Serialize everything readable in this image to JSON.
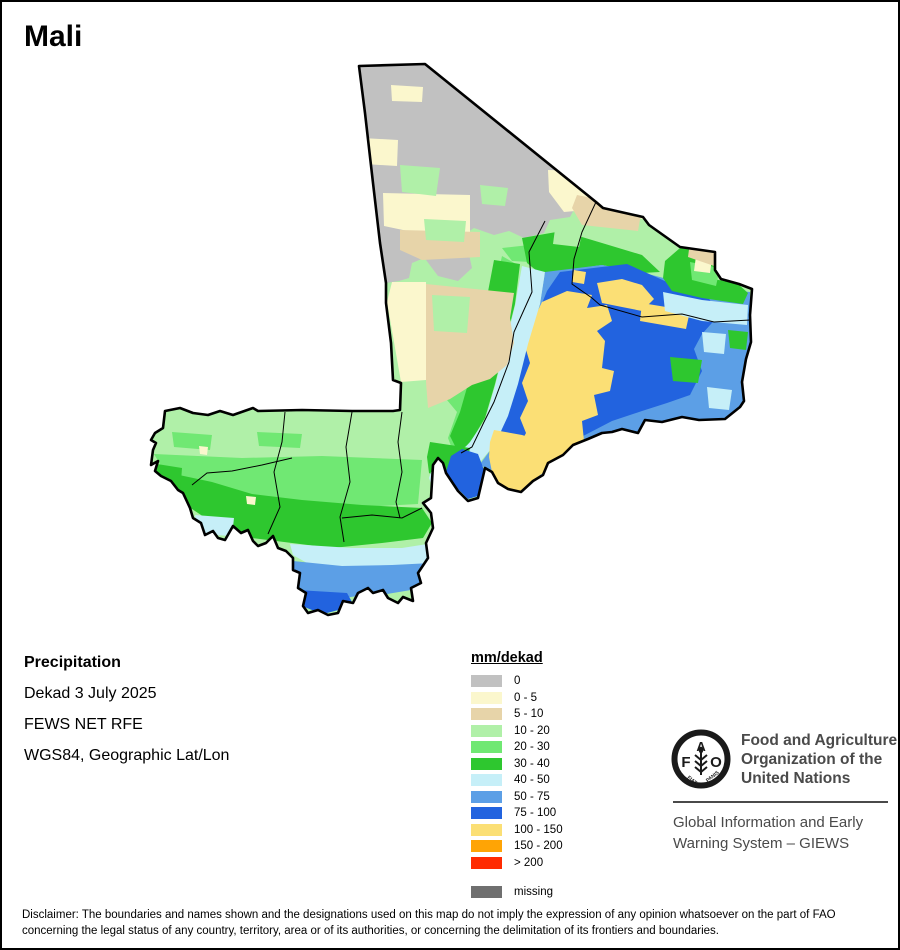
{
  "title": "Mali",
  "info": {
    "heading": "Precipitation",
    "lines": [
      "Dekad 3 July 2025",
      "FEWS NET RFE",
      "WGS84, Geographic Lat/Lon"
    ]
  },
  "legend": {
    "header": "mm/dekad",
    "entries": [
      {
        "key": "mm0",
        "label": "0",
        "hex": "#C1C1C1",
        "gap_before": false
      },
      {
        "key": "mm0_5",
        "label": "0 - 5",
        "hex": "#FBF7CD",
        "gap_before": false
      },
      {
        "key": "mm5_10",
        "label": "5 - 10",
        "hex": "#E7D4A9",
        "gap_before": false
      },
      {
        "key": "mm10_20",
        "label": "10 - 20",
        "hex": "#B0F0A8",
        "gap_before": false
      },
      {
        "key": "mm20_30",
        "label": "20 - 30",
        "hex": "#70E873",
        "gap_before": false
      },
      {
        "key": "mm30_40",
        "label": "30 - 40",
        "hex": "#2EC72F",
        "gap_before": false
      },
      {
        "key": "mm40_50",
        "label": "40 - 50",
        "hex": "#C6EFF8",
        "gap_before": false
      },
      {
        "key": "mm50_75",
        "label": "50 - 75",
        "hex": "#5C9FE6",
        "gap_before": false
      },
      {
        "key": "mm75_100",
        "label": "75 - 100",
        "hex": "#2263DF",
        "gap_before": false
      },
      {
        "key": "mm100_150",
        "label": "100 - 150",
        "hex": "#FBDF75",
        "gap_before": false
      },
      {
        "key": "mm150_200",
        "label": "150 - 200",
        "hex": "#FFA405",
        "gap_before": false
      },
      {
        "key": "mm200",
        "label": "> 200",
        "hex": "#FF2B01",
        "gap_before": false
      },
      {
        "key": "missing",
        "label": "missing",
        "hex": "#6F6F6F",
        "gap_before": true
      }
    ]
  },
  "fao": {
    "org_lines": [
      "Food and Agriculture",
      "Organization of the",
      "United Nations"
    ],
    "giews_lines": [
      "Global Information and Early",
      "Warning System – GIEWS"
    ],
    "logo_letters": {
      "f": "F",
      "a": "A",
      "o": "O"
    },
    "logo_motto": {
      "left": "FIAT",
      "right": "PANIS"
    }
  },
  "disclaimer_lines": [
    "Disclaimer: The boundaries and names shown and the designations used on this map do not imply the expression of any opinion whatsoever on the part of FAO",
    "concerning the legal status of any country, territory, area or of its authorities, or concerning the delimitation of its frontiers and boundaries."
  ]
}
